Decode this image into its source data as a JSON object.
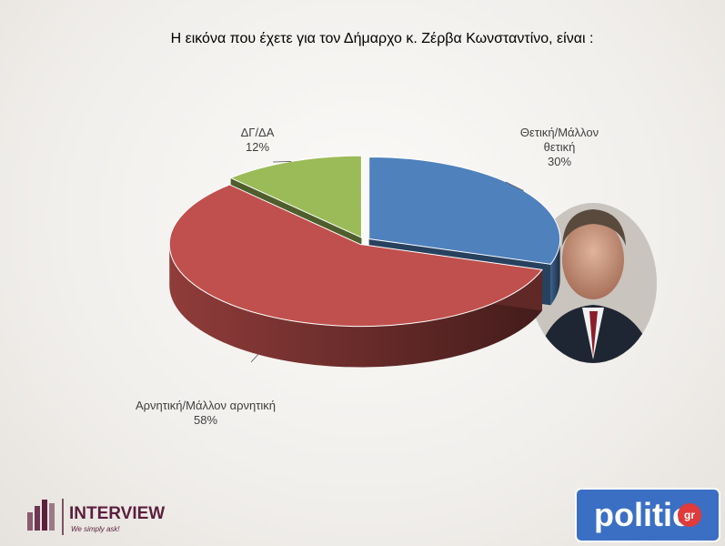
{
  "chart_data": {
    "type": "pie3d",
    "title": "Η εικόνα που έχετε για τον Δήμαρχο κ. Ζέρβα Κωνσταντίνο, είναι :",
    "categories": [
      "Θετική/Μάλλον θετική",
      "Αρνητική/Μάλλον αρνητική",
      "ΔΓ/ΔΑ"
    ],
    "values": [
      30,
      58,
      12
    ],
    "value_labels": [
      "30%",
      "58%",
      "12%"
    ],
    "colors": [
      "#4f81bd",
      "#c0504d",
      "#9bbb59"
    ]
  },
  "logos": {
    "interview": "INTERVIEW",
    "interview_tagline": "We simply ask!",
    "politic": "politic",
    "politic_suffix": "gr"
  }
}
